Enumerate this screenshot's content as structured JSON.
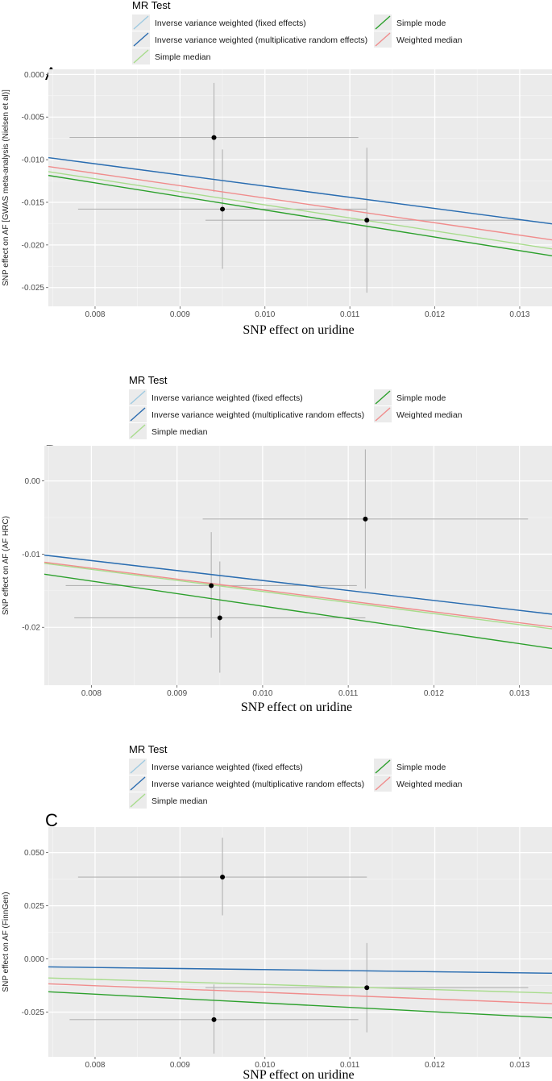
{
  "figure": {
    "legend": {
      "title": "MR Test",
      "entries": [
        {
          "name": "Inverse variance weighted (fixed effects)",
          "color": "#9ecae1"
        },
        {
          "name": "Inverse variance weighted (multiplicative random effects)",
          "color": "#2b6cb0"
        },
        {
          "name": "Simple median",
          "color": "#a8dc8c"
        },
        {
          "name": "Simple mode",
          "color": "#2ca02c"
        },
        {
          "name": "Weighted median",
          "color": "#f08c8c"
        }
      ]
    }
  },
  "chart_data": [
    {
      "panel": "A",
      "type": "scatter",
      "xlabel": "SNP effect on uridine",
      "ylabel": "SNP effect on AF [GWAS meta-analysis (Nielsen et al)]",
      "xlim": [
        0.00745,
        0.01338
      ],
      "ylim": [
        -0.0272,
        0.0006
      ],
      "xticks": [
        0.008,
        0.009,
        0.01,
        0.011,
        0.012,
        0.013
      ],
      "xtick_labels": [
        "0.008",
        "0.009",
        "0.010",
        "0.011",
        "0.012",
        "0.013"
      ],
      "yticks": [
        0,
        -0.005,
        -0.01,
        -0.015,
        -0.02,
        -0.025
      ],
      "ytick_labels": [
        "0.000",
        "-0.005",
        "-0.010",
        "-0.015",
        "-0.020",
        "-0.025"
      ],
      "points": [
        {
          "x": 0.0094,
          "y": -0.0074,
          "xerr_lo": 0.0077,
          "xerr_hi": 0.0111,
          "yerr_lo": -0.0138,
          "yerr_hi": -0.001
        },
        {
          "x": 0.0095,
          "y": -0.0158,
          "xerr_lo": 0.0078,
          "xerr_hi": 0.0112,
          "yerr_lo": -0.0228,
          "yerr_hi": -0.0088
        },
        {
          "x": 0.0112,
          "y": -0.0171,
          "xerr_lo": 0.0093,
          "xerr_hi": 0.0131,
          "yerr_lo": -0.0256,
          "yerr_hi": -0.0086
        }
      ],
      "series": [
        {
          "name": "Inverse variance weighted (fixed effects)",
          "slope": -1.31,
          "intercept": 0
        },
        {
          "name": "Inverse variance weighted (multiplicative random effects)",
          "slope": -1.31,
          "intercept": 0
        },
        {
          "name": "Simple median",
          "slope": -1.53,
          "intercept": 0
        },
        {
          "name": "Simple mode",
          "slope": -1.59,
          "intercept": 0
        },
        {
          "name": "Weighted median",
          "slope": -1.45,
          "intercept": 0
        }
      ]
    },
    {
      "panel": "B",
      "type": "scatter",
      "xlabel": "SNP effect on uridine",
      "ylabel": "SNP effect on AF (AF HRC)",
      "xlim": [
        0.00745,
        0.01338
      ],
      "ylim": [
        -0.0279,
        0.0048
      ],
      "xticks": [
        0.008,
        0.009,
        0.01,
        0.011,
        0.012,
        0.013
      ],
      "xtick_labels": [
        "0.008",
        "0.009",
        "0.010",
        "0.011",
        "0.012",
        "0.013"
      ],
      "yticks": [
        0,
        -0.01,
        -0.02
      ],
      "ytick_labels": [
        "0.00",
        "-0.01",
        "-0.02"
      ],
      "points": [
        {
          "x": 0.0112,
          "y": -0.0052,
          "xerr_lo": 0.0093,
          "xerr_hi": 0.0131,
          "yerr_lo": -0.0147,
          "yerr_hi": 0.0043
        },
        {
          "x": 0.0094,
          "y": -0.0143,
          "xerr_lo": 0.0077,
          "xerr_hi": 0.0111,
          "yerr_lo": -0.0214,
          "yerr_hi": -0.007
        },
        {
          "x": 0.0095,
          "y": -0.0187,
          "xerr_lo": 0.0078,
          "xerr_hi": 0.0112,
          "yerr_lo": -0.0262,
          "yerr_hi": -0.011
        }
      ],
      "series": [
        {
          "name": "Inverse variance weighted (fixed effects)",
          "slope": -1.36,
          "intercept": 0
        },
        {
          "name": "Inverse variance weighted (multiplicative random effects)",
          "slope": -1.36,
          "intercept": 0
        },
        {
          "name": "Simple median",
          "slope": -1.51,
          "intercept": 0
        },
        {
          "name": "Simple mode",
          "slope": -1.71,
          "intercept": 0
        },
        {
          "name": "Weighted median",
          "slope": -1.49,
          "intercept": 0
        }
      ]
    },
    {
      "panel": "C",
      "type": "scatter",
      "xlabel": "SNP effect on uridine",
      "ylabel": "SNP effect on AF (FinnGen)",
      "xlim": [
        0.00745,
        0.01338
      ],
      "ylim": [
        -0.046,
        0.062
      ],
      "xticks": [
        0.008,
        0.009,
        0.01,
        0.011,
        0.012,
        0.013
      ],
      "xtick_labels": [
        "0.008",
        "0.009",
        "0.010",
        "0.011",
        "0.012",
        "0.013"
      ],
      "yticks": [
        0.05,
        0.025,
        0,
        -0.025
      ],
      "ytick_labels": [
        "0.050",
        "0.025",
        "0.000",
        "-0.025"
      ],
      "points": [
        {
          "x": 0.0095,
          "y": 0.0385,
          "xerr_lo": 0.0078,
          "xerr_hi": 0.0112,
          "yerr_lo": 0.0205,
          "yerr_hi": 0.057
        },
        {
          "x": 0.0112,
          "y": -0.0135,
          "xerr_lo": 0.0093,
          "xerr_hi": 0.0131,
          "yerr_lo": -0.0345,
          "yerr_hi": 0.0075
        },
        {
          "x": 0.0094,
          "y": -0.0285,
          "xerr_lo": 0.0077,
          "xerr_hi": 0.0111,
          "yerr_lo": -0.0445,
          "yerr_hi": -0.012
        }
      ],
      "series": [
        {
          "name": "Inverse variance weighted (fixed effects)",
          "slope": -0.5,
          "intercept": 0
        },
        {
          "name": "Inverse variance weighted (multiplicative random effects)",
          "slope": -0.5,
          "intercept": 0
        },
        {
          "name": "Simple median",
          "slope": -1.2,
          "intercept": 0
        },
        {
          "name": "Simple mode",
          "slope": -2.07,
          "intercept": 0
        },
        {
          "name": "Weighted median",
          "slope": -1.57,
          "intercept": 0
        }
      ]
    }
  ]
}
